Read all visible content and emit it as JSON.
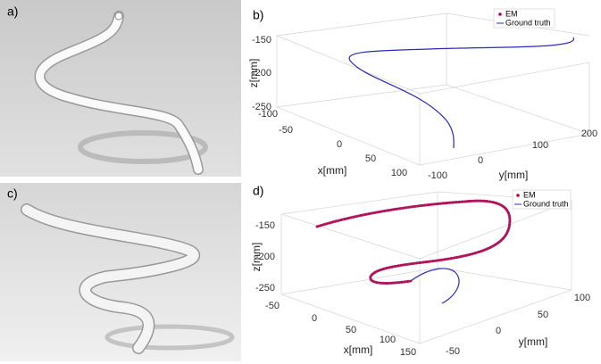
{
  "panels": [
    {
      "label": "a)"
    },
    {
      "label": "b)",
      "legend": [
        "EM",
        "Ground truth"
      ],
      "z_label": "z[mm]",
      "x_label": "x[mm]",
      "y_label": "y[mm]",
      "z_ticks": [
        "-150",
        "-200",
        "-250"
      ],
      "x_ticks": [
        "-100",
        "-50",
        "0",
        "50",
        "100"
      ],
      "y_ticks": [
        "-100",
        "0",
        "100",
        "200"
      ]
    },
    {
      "label": "c)"
    },
    {
      "label": "d)",
      "legend": [
        "EM",
        "Ground truth"
      ],
      "z_label": "z[mm]",
      "x_label": "x[mm]",
      "y_label": "y[mm]",
      "z_ticks": [
        "-150",
        "-200",
        "-250"
      ],
      "x_ticks": [
        "-50",
        "0",
        "50",
        "100",
        "150"
      ],
      "y_ticks": [
        "-50",
        "0",
        "50",
        "100"
      ]
    }
  ]
}
